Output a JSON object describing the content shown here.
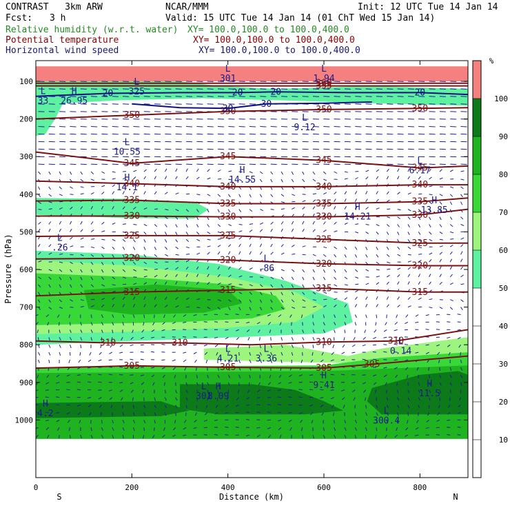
{
  "header": {
    "model": "CONTRAST   3km ARW",
    "center": "NCAR/MMM",
    "init": "Init: 12 UTC Tue 14 Jan 14",
    "fcst_label": "Fcst:",
    "fcst_value": "3 h",
    "valid": "Valid: 15 UTC Tue 14 Jan 14 (01 ChT Wed 15 Jan 14)",
    "fields": [
      {
        "name": "Relative humidity (w.r.t. water)",
        "xy": "XY= 100.0,100.0 to 100.0,400.0",
        "color": "#228b22"
      },
      {
        "name": "Potential temperature",
        "xy": "XY= 100.0,100.0 to 100.0,400.0",
        "color": "#8b0000"
      },
      {
        "name": "Horizontal wind speed",
        "xy": "XY= 100.0,100.0 to 100.0,400.0",
        "color": "#191970"
      }
    ]
  },
  "chart_data": {
    "type": "heatmap",
    "xlabel": "Distance (km)",
    "ylabel": "Pressure (hPa)",
    "xlim": [
      0,
      900
    ],
    "ylim": [
      1050,
      50
    ],
    "x_ticks": [
      0,
      200,
      400,
      600,
      800
    ],
    "y_ticks": [
      100,
      200,
      300,
      400,
      500,
      600,
      700,
      800,
      900,
      1000
    ],
    "left_end": "S",
    "right_end": "N",
    "colorbar": {
      "unit": "%",
      "levels": [
        10,
        20,
        30,
        40,
        50,
        60,
        70,
        80,
        90,
        100
      ],
      "bands": [
        {
          "from": 0,
          "to": 50,
          "color": "#ffffff"
        },
        {
          "from": 50,
          "to": 60,
          "color": "#5ef2a0"
        },
        {
          "from": 60,
          "to": 70,
          "color": "#9ef57d"
        },
        {
          "from": 70,
          "to": 80,
          "color": "#38d838"
        },
        {
          "from": 80,
          "to": 90,
          "color": "#1fb31f"
        },
        {
          "from": 90,
          "to": 100,
          "color": "#0d7a1a"
        },
        {
          "from": 100,
          "to": 110,
          "color": "#f48080"
        }
      ]
    },
    "rh_regions": [
      {
        "level": 110,
        "points": [
          [
            0,
            60
          ],
          [
            900,
            60
          ],
          [
            900,
            100
          ],
          [
            0,
            100
          ]
        ]
      },
      {
        "level": 50,
        "points": [
          [
            0,
            100
          ],
          [
            300,
            100
          ],
          [
            380,
            112
          ],
          [
            500,
            120
          ],
          [
            700,
            112
          ],
          [
            900,
            120
          ],
          [
            900,
            165
          ],
          [
            700,
            158
          ],
          [
            500,
            150
          ],
          [
            350,
            145
          ],
          [
            180,
            150
          ],
          [
            60,
            158
          ],
          [
            0,
            170
          ]
        ]
      },
      {
        "level": 50,
        "points": [
          [
            0,
            150
          ],
          [
            60,
            150
          ],
          [
            40,
            200
          ],
          [
            20,
            240
          ],
          [
            0,
            245
          ]
        ]
      },
      {
        "level": 50,
        "points": [
          [
            0,
            410
          ],
          [
            180,
            412
          ],
          [
            330,
            420
          ],
          [
            360,
            440
          ],
          [
            330,
            465
          ],
          [
            180,
            463
          ],
          [
            0,
            455
          ]
        ]
      },
      {
        "level": 50,
        "points": [
          [
            0,
            550
          ],
          [
            200,
            560
          ],
          [
            380,
            585
          ],
          [
            520,
            630
          ],
          [
            650,
            690
          ],
          [
            660,
            740
          ],
          [
            600,
            770
          ],
          [
            420,
            780
          ],
          [
            200,
            790
          ],
          [
            0,
            800
          ]
        ]
      },
      {
        "level": 60,
        "points": [
          [
            0,
            575
          ],
          [
            200,
            590
          ],
          [
            400,
            620
          ],
          [
            540,
            660
          ],
          [
            600,
            700
          ],
          [
            540,
            740
          ],
          [
            400,
            755
          ],
          [
            200,
            765
          ],
          [
            0,
            772
          ]
        ]
      },
      {
        "level": 70,
        "points": [
          [
            0,
            610
          ],
          [
            200,
            620
          ],
          [
            400,
            640
          ],
          [
            500,
            670
          ],
          [
            520,
            705
          ],
          [
            450,
            730
          ],
          [
            300,
            740
          ],
          [
            100,
            745
          ],
          [
            0,
            748
          ]
        ]
      },
      {
        "level": 80,
        "points": [
          [
            100,
            655
          ],
          [
            250,
            640
          ],
          [
            400,
            655
          ],
          [
            430,
            690
          ],
          [
            350,
            715
          ],
          [
            200,
            720
          ],
          [
            110,
            705
          ]
        ]
      },
      {
        "level": 60,
        "points": [
          [
            350,
            810
          ],
          [
            520,
            800
          ],
          [
            650,
            830
          ],
          [
            720,
            810
          ],
          [
            900,
            780
          ],
          [
            900,
            840
          ],
          [
            700,
            850
          ],
          [
            500,
            845
          ],
          [
            350,
            840
          ]
        ]
      },
      {
        "level": 70,
        "points": [
          [
            0,
            860
          ],
          [
            600,
            855
          ],
          [
            720,
            835
          ],
          [
            900,
            820
          ],
          [
            900,
            1050
          ],
          [
            0,
            1050
          ]
        ]
      },
      {
        "level": 80,
        "points": [
          [
            0,
            875
          ],
          [
            600,
            870
          ],
          [
            900,
            855
          ],
          [
            900,
            1050
          ],
          [
            0,
            1050
          ]
        ]
      },
      {
        "level": 90,
        "points": [
          [
            300,
            905
          ],
          [
            450,
            905
          ],
          [
            540,
            920
          ],
          [
            600,
            950
          ],
          [
            640,
            975
          ],
          [
            560,
            985
          ],
          [
            380,
            985
          ],
          [
            300,
            970
          ]
        ]
      },
      {
        "level": 90,
        "points": [
          [
            700,
            915
          ],
          [
            800,
            880
          ],
          [
            880,
            870
          ],
          [
            900,
            880
          ],
          [
            900,
            985
          ],
          [
            720,
            985
          ],
          [
            690,
            950
          ]
        ]
      },
      {
        "level": 90,
        "points": [
          [
            0,
            955
          ],
          [
            260,
            950
          ],
          [
            320,
            975
          ],
          [
            260,
            990
          ],
          [
            0,
            995
          ]
        ]
      }
    ],
    "theta_contours": [
      {
        "value": 310,
        "labels": [
          "310",
          "310",
          "310",
          "310"
        ],
        "points": [
          [
            0,
            790
          ],
          [
            150,
            795
          ],
          [
            300,
            795
          ],
          [
            450,
            800
          ],
          [
            600,
            793
          ],
          [
            750,
            790
          ],
          [
            900,
            760
          ]
        ]
      },
      {
        "value": 305,
        "labels": [
          "305",
          "305",
          "305",
          "305"
        ],
        "points": [
          [
            0,
            862
          ],
          [
            200,
            856
          ],
          [
            400,
            860
          ],
          [
            600,
            862
          ],
          [
            700,
            852
          ],
          [
            900,
            830
          ]
        ]
      },
      {
        "value": 315,
        "labels": [
          "315",
          "315",
          "315",
          "315"
        ],
        "points": [
          [
            0,
            670
          ],
          [
            200,
            660
          ],
          [
            400,
            655
          ],
          [
            600,
            650
          ],
          [
            800,
            660
          ],
          [
            900,
            660
          ]
        ]
      },
      {
        "value": 320,
        "labels": [
          "320",
          "320",
          "320",
          "320"
        ],
        "points": [
          [
            0,
            572
          ],
          [
            200,
            570
          ],
          [
            400,
            575
          ],
          [
            600,
            585
          ],
          [
            800,
            590
          ],
          [
            900,
            590
          ]
        ]
      },
      {
        "value": 325,
        "labels": [
          "325",
          "325",
          "325",
          "325"
        ],
        "points": [
          [
            0,
            512
          ],
          [
            200,
            510
          ],
          [
            400,
            510
          ],
          [
            600,
            520
          ],
          [
            800,
            530
          ],
          [
            900,
            530
          ]
        ]
      },
      {
        "value": 330,
        "labels": [
          "330",
          "330",
          "330",
          "330"
        ],
        "points": [
          [
            0,
            458
          ],
          [
            200,
            458
          ],
          [
            400,
            460
          ],
          [
            600,
            460
          ],
          [
            800,
            455
          ],
          [
            900,
            440
          ]
        ]
      },
      {
        "value": 335,
        "labels": [
          "335",
          "335",
          "335",
          "335"
        ],
        "points": [
          [
            0,
            418
          ],
          [
            200,
            416
          ],
          [
            400,
            425
          ],
          [
            600,
            425
          ],
          [
            800,
            420
          ],
          [
            900,
            410
          ]
        ]
      },
      {
        "value": 340,
        "labels": [
          "340",
          "340",
          "340",
          "340"
        ],
        "points": [
          [
            0,
            365
          ],
          [
            200,
            372
          ],
          [
            400,
            380
          ],
          [
            600,
            380
          ],
          [
            800,
            375
          ],
          [
            900,
            375
          ]
        ]
      },
      {
        "value": 345,
        "labels": [
          "345",
          "345",
          "345",
          "345"
        ],
        "points": [
          [
            0,
            288
          ],
          [
            200,
            318
          ],
          [
            400,
            300
          ],
          [
            600,
            310
          ],
          [
            800,
            330
          ],
          [
            900,
            325
          ]
        ]
      },
      {
        "value": 350,
        "labels": [
          "350",
          "350",
          "350",
          "350"
        ],
        "points": [
          [
            0,
            200
          ],
          [
            200,
            190
          ],
          [
            400,
            180
          ],
          [
            600,
            175
          ],
          [
            800,
            172
          ],
          [
            900,
            170
          ]
        ]
      },
      {
        "value": 355,
        "labels": [
          "355"
        ],
        "points": [
          [
            0,
            112
          ],
          [
            200,
            112
          ],
          [
            400,
            112
          ],
          [
            600,
            112
          ],
          [
            800,
            112
          ],
          [
            900,
            112
          ]
        ]
      },
      {
        "value": 360,
        "labels": [
          "360"
        ],
        "points": [
          [
            0,
            105
          ],
          [
            300,
            105
          ],
          [
            600,
            105
          ],
          [
            900,
            105
          ]
        ]
      }
    ],
    "wind_contours": [
      {
        "value": 20,
        "labels": [
          "20",
          "20",
          "20",
          "20"
        ],
        "points": [
          [
            0,
            140
          ],
          [
            150,
            132
          ],
          [
            300,
            130
          ],
          [
            420,
            130
          ],
          [
            500,
            128
          ],
          [
            650,
            130
          ],
          [
            800,
            130
          ],
          [
            900,
            135
          ]
        ]
      },
      {
        "value": 30,
        "labels": [
          "30",
          "30"
        ],
        "points": [
          [
            200,
            160
          ],
          [
            300,
            170
          ],
          [
            400,
            172
          ],
          [
            480,
            160
          ],
          [
            600,
            158
          ],
          [
            700,
            155
          ]
        ]
      }
    ],
    "hl_markers": [
      {
        "type": "L",
        "value": "10.55",
        "x": 190,
        "p": 280
      },
      {
        "type": "L",
        "value": "9.12",
        "x": 560,
        "p": 215
      },
      {
        "type": "H",
        "value": "14.55",
        "x": 430,
        "p": 355
      },
      {
        "type": "L",
        "value": "6.17",
        "x": 800,
        "p": 330
      },
      {
        "type": "H",
        "value": "14.1",
        "x": 190,
        "p": 375
      },
      {
        "type": "H",
        "value": "13.85",
        "x": 830,
        "p": 435
      },
      {
        "type": "H",
        "value": "14.21",
        "x": 670,
        "p": 453
      },
      {
        "type": "L",
        "value": ".26",
        "x": 50,
        "p": 535
      },
      {
        "type": "L",
        "value": ".86",
        "x": 480,
        "p": 590
      },
      {
        "type": "L",
        "value": "0.14",
        "x": 760,
        "p": 810
      },
      {
        "type": "L",
        "value": "4.21",
        "x": 400,
        "p": 830
      },
      {
        "type": "L",
        "value": "3.36",
        "x": 480,
        "p": 830
      },
      {
        "type": "H",
        "value": "9.41",
        "x": 600,
        "p": 900
      },
      {
        "type": "H",
        "value": "11.5",
        "x": 820,
        "p": 922
      },
      {
        "type": "L",
        "value": "301",
        "x": 350,
        "p": 930
      },
      {
        "type": "H",
        "value": "8.09",
        "x": 380,
        "p": 930
      },
      {
        "type": "L",
        "value": "300.4",
        "x": 730,
        "p": 995
      },
      {
        "type": "H",
        "value": "4.2",
        "x": 20,
        "p": 975
      },
      {
        "type": "L",
        "value": "301",
        "x": 400,
        "p": 85
      },
      {
        "type": "L",
        "value": "1.94",
        "x": 600,
        "p": 85
      },
      {
        "type": "H",
        "value": "26.95",
        "x": 80,
        "p": 145
      },
      {
        "type": "L",
        "value": "325",
        "x": 210,
        "p": 120
      },
      {
        "type": "L",
        "value": "33",
        "x": 15,
        "p": 145
      }
    ]
  }
}
